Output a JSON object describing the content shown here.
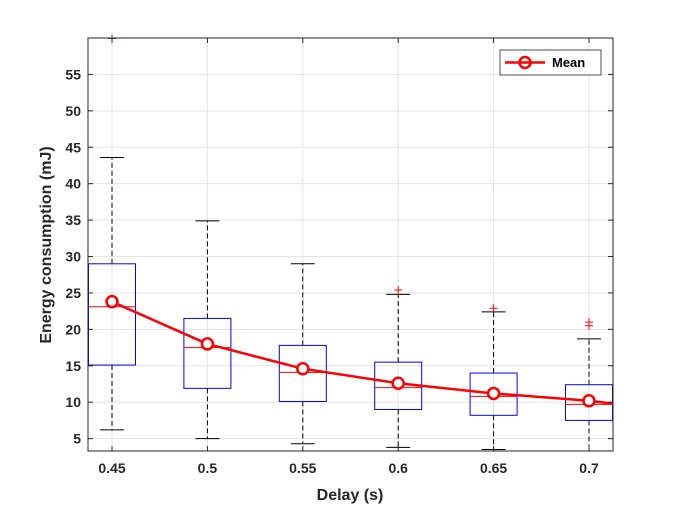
{
  "chart_data": {
    "type": "box",
    "xlabel": "Delay (s)",
    "ylabel": "Energy consumption (mJ)",
    "ylim": [
      3.3,
      60
    ],
    "grid": true,
    "legend_position": "top-right",
    "categories": [
      "0.45",
      "0.5",
      "0.55",
      "0.6",
      "0.65",
      "0.7"
    ],
    "yticks": [
      5,
      10,
      15,
      20,
      25,
      30,
      35,
      40,
      45,
      50,
      55
    ],
    "boxes": [
      {
        "x": "0.45",
        "lower_whisker": 6.2,
        "q1": 15.1,
        "median": 23.1,
        "q3": 29.0,
        "upper_whisker": 43.6,
        "outliers": [
          60
        ]
      },
      {
        "x": "0.5",
        "lower_whisker": 5.0,
        "q1": 11.9,
        "median": 17.5,
        "q3": 21.5,
        "upper_whisker": 34.9,
        "outliers": []
      },
      {
        "x": "0.55",
        "lower_whisker": 4.3,
        "q1": 10.1,
        "median": 14.1,
        "q3": 17.8,
        "upper_whisker": 29.0,
        "outliers": []
      },
      {
        "x": "0.6",
        "lower_whisker": 3.8,
        "q1": 9.0,
        "median": 12.0,
        "q3": 15.5,
        "upper_whisker": 24.8,
        "outliers": [
          25.4
        ]
      },
      {
        "x": "0.65",
        "lower_whisker": 3.5,
        "q1": 8.2,
        "median": 10.8,
        "q3": 14.0,
        "upper_whisker": 22.4,
        "outliers": [
          22.9
        ]
      },
      {
        "x": "0.7",
        "lower_whisker": 3.3,
        "q1": 7.5,
        "median": 9.7,
        "q3": 12.4,
        "upper_whisker": 18.7,
        "outliers": [
          20.5,
          21.0
        ]
      }
    ],
    "series": [
      {
        "name": "Mean",
        "values": [
          23.8,
          18.0,
          14.6,
          12.6,
          11.2,
          10.2
        ]
      }
    ],
    "colors": {
      "box": "#0000ff",
      "whisker": "#000000",
      "median": "#ff0000",
      "outlier": "#ff0000",
      "mean": "#ff0000",
      "grid": "#e3e3e3",
      "axis": "#262626"
    }
  }
}
